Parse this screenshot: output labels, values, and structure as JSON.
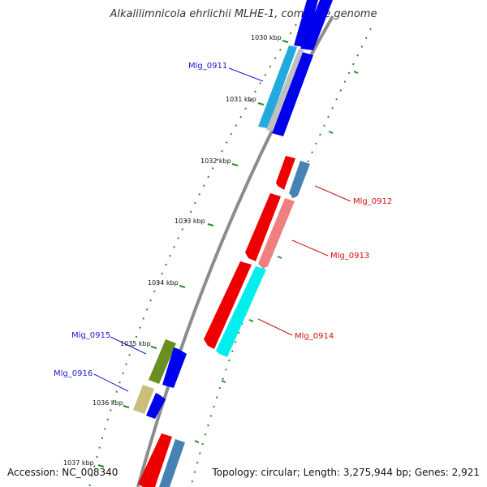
{
  "title": "Alkalilimnicola ehrlichii MLHE-1, complete genome",
  "footer": {
    "accession": "Accession: NC_008340",
    "summary": "Topology: circular; Length: 3,275,944 bp; Genes: 2,921"
  },
  "colors": {
    "backbone": "#8c8c8c",
    "tick": "#2a8a2a",
    "label_blue": "#1a1acc",
    "label_red": "#cc1111"
  },
  "ticks": [
    "1030 kbp",
    "1031 kbp",
    "1032 kbp",
    "1033 kbp",
    "1034 kbp",
    "1035 kbp",
    "1036 kbp",
    "1037 kbp"
  ],
  "gene_labels": {
    "mlg_0911": "Mlg_0911",
    "mlg_0912": "Mlg_0912",
    "mlg_0913": "Mlg_0913",
    "mlg_0914": "Mlg_0914",
    "mlg_0915": "Mlg_0915",
    "mlg_0916": "Mlg_0916"
  }
}
